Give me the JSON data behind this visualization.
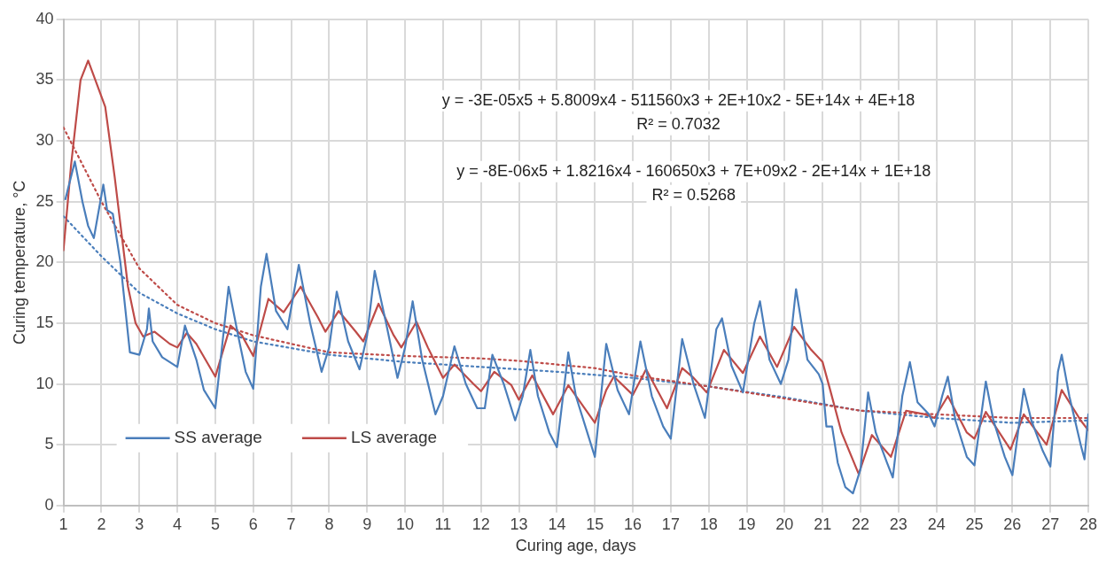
{
  "chart_data": {
    "type": "line",
    "xlabel": "Curing age, days",
    "ylabel": "Curing temperature, °C",
    "xlim": [
      1,
      28
    ],
    "xticks": [
      1,
      2,
      3,
      4,
      5,
      6,
      7,
      8,
      9,
      10,
      11,
      12,
      13,
      14,
      15,
      16,
      17,
      18,
      19,
      20,
      21,
      22,
      23,
      24,
      25,
      26,
      27,
      28
    ],
    "ylim": [
      0,
      40
    ],
    "yticks": [
      0,
      5,
      10,
      15,
      20,
      25,
      30,
      35,
      40
    ],
    "grid": true,
    "legend": "bottom left",
    "marker": "none",
    "annotations": [
      "y = -3E-05x5 + 5.8009x4 - 511560x3 + 2E+10x2 - 5E+14x + 4E+18",
      "R² = 0.7032",
      "y = -8E-06x5 + 1.8216x4 - 160650x3 + 7E+09x2 - 2E+14x + 1E+18",
      "R² = 0.5268"
    ],
    "series": [
      {
        "name": "SS average",
        "color": "#4a7ebb",
        "line_style": "solid",
        "x": [
          1.05,
          1.3,
          1.5,
          1.65,
          1.8,
          2.05,
          2.15,
          2.3,
          2.5,
          2.75,
          3.0,
          3.2,
          3.25,
          3.35,
          3.6,
          4.0,
          4.2,
          4.5,
          4.7,
          5.0,
          5.35,
          5.6,
          5.8,
          6.0,
          6.2,
          6.35,
          6.6,
          6.9,
          7.2,
          7.5,
          7.8,
          8.0,
          8.2,
          8.5,
          8.8,
          9.0,
          9.2,
          9.5,
          9.8,
          10.0,
          10.2,
          10.45,
          10.8,
          11.0,
          11.3,
          11.6,
          11.9,
          12.1,
          12.3,
          12.6,
          12.9,
          13.1,
          13.3,
          13.5,
          13.8,
          14.0,
          14.3,
          14.5,
          14.8,
          15.0,
          15.3,
          15.6,
          15.9,
          16.2,
          16.5,
          16.8,
          17.0,
          17.3,
          17.6,
          17.9,
          18.2,
          18.35,
          18.6,
          18.9,
          19.2,
          19.35,
          19.6,
          19.9,
          20.1,
          20.3,
          20.6,
          20.9,
          21.0,
          21.1,
          21.25,
          21.4,
          21.6,
          21.8,
          22.0,
          22.2,
          22.4,
          22.7,
          22.85,
          23.1,
          23.3,
          23.5,
          23.8,
          23.95,
          24.15,
          24.3,
          24.5,
          24.8,
          25.0,
          25.3,
          25.5,
          25.8,
          26.0,
          26.3,
          26.5,
          26.8,
          27.0,
          27.2,
          27.3,
          27.5,
          27.8,
          27.9,
          28.0
        ],
        "values": [
          25.2,
          28.3,
          25,
          23,
          22,
          26.4,
          24.3,
          24,
          20,
          12.6,
          12.4,
          14.5,
          16.2,
          13.5,
          12.2,
          11.4,
          14.8,
          12,
          9.5,
          8,
          18,
          14,
          11,
          9.6,
          18,
          20.7,
          16,
          14.5,
          19.8,
          15,
          11,
          13,
          17.6,
          13.5,
          11.2,
          14,
          19.3,
          15,
          10.5,
          13,
          16.8,
          12,
          7.5,
          9,
          13.1,
          10,
          8,
          8,
          12.4,
          10,
          7,
          9,
          12.8,
          9,
          6,
          4.8,
          12.6,
          9,
          6,
          4,
          13.3,
          9.5,
          7.5,
          13.5,
          9,
          6.5,
          5.5,
          13.7,
          10,
          7.2,
          14.5,
          15.4,
          11.5,
          9.3,
          15,
          16.8,
          12,
          10,
          12,
          17.8,
          12,
          10.8,
          10,
          6.5,
          6.5,
          3.5,
          1.5,
          1.0,
          3,
          9.3,
          6,
          3.5,
          2.3,
          9,
          11.8,
          8.5,
          7.5,
          6.5,
          9,
          10.6,
          7,
          4,
          3.3,
          10.2,
          7,
          4,
          2.5,
          9.6,
          7,
          4.5,
          3.2,
          11,
          12.4,
          9,
          5,
          3.8,
          7.5
        ]
      },
      {
        "name": "LS average",
        "color": "#be4b48",
        "line_style": "solid",
        "x": [
          1.0,
          1.2,
          1.45,
          1.65,
          1.9,
          2.1,
          2.35,
          2.7,
          2.9,
          3.1,
          3.4,
          3.8,
          4.0,
          4.25,
          4.5,
          5.0,
          5.4,
          5.7,
          6.0,
          6.4,
          6.8,
          7.25,
          7.7,
          7.9,
          8.25,
          8.7,
          8.9,
          9.3,
          9.7,
          9.9,
          10.3,
          10.6,
          11.0,
          11.3,
          11.8,
          12.0,
          12.35,
          12.8,
          13.0,
          13.35,
          13.9,
          14.3,
          15.0,
          15.3,
          15.5,
          16.0,
          16.35,
          16.9,
          17.3,
          17.6,
          17.95,
          18.4,
          18.9,
          19.35,
          19.8,
          20.25,
          20.7,
          21.0,
          21.2,
          21.5,
          21.95,
          22.3,
          22.8,
          23.2,
          23.7,
          23.95,
          24.3,
          24.8,
          25.0,
          25.3,
          25.95,
          26.3,
          26.9,
          27.3,
          27.8,
          28.0
        ],
        "values": [
          21,
          28,
          35,
          36.6,
          34.5,
          32.8,
          27,
          18,
          15,
          13.9,
          14.3,
          13.3,
          13,
          14.2,
          13.3,
          10.6,
          14.8,
          14,
          12.3,
          17,
          15.9,
          18,
          15.5,
          14.3,
          16,
          14.3,
          13.5,
          16.6,
          14,
          13,
          15.1,
          13,
          10.5,
          11.6,
          10,
          9.4,
          11,
          9.9,
          8.7,
          10.7,
          7.5,
          9.9,
          6.8,
          9.5,
          10.6,
          9.1,
          11.2,
          8,
          11.3,
          10.5,
          9.3,
          12.8,
          10.9,
          13.9,
          11.4,
          14.7,
          12.8,
          11.8,
          9.5,
          6,
          2.6,
          5.8,
          4,
          7.8,
          7.5,
          7.2,
          9,
          6,
          5.5,
          7.7,
          4.6,
          7.5,
          5,
          9.5,
          7,
          6.2
        ]
      },
      {
        "color": "#be4b48",
        "line_style": "dotted",
        "x": [
          1,
          2,
          3,
          4,
          5,
          6,
          8,
          10,
          12,
          13,
          14,
          15,
          16,
          18,
          20,
          22,
          24,
          26,
          28
        ],
        "values": [
          31.1,
          25,
          19.5,
          16.5,
          15,
          14,
          12.6,
          12.3,
          12.1,
          11.9,
          11.6,
          11.3,
          10.7,
          9.8,
          8.8,
          7.8,
          7.5,
          7.2,
          7.2
        ]
      },
      {
        "color": "#4a7ebb",
        "line_style": "dotted",
        "x": [
          1,
          2,
          3,
          4,
          5,
          6,
          8,
          10,
          12,
          14,
          16,
          18,
          20,
          22,
          24,
          26,
          28
        ],
        "values": [
          23.8,
          20.5,
          17.5,
          15.8,
          14.5,
          13.5,
          12.4,
          11.8,
          11.4,
          11,
          10.5,
          9.8,
          8.9,
          7.8,
          7.2,
          6.8,
          7.0
        ]
      }
    ]
  }
}
